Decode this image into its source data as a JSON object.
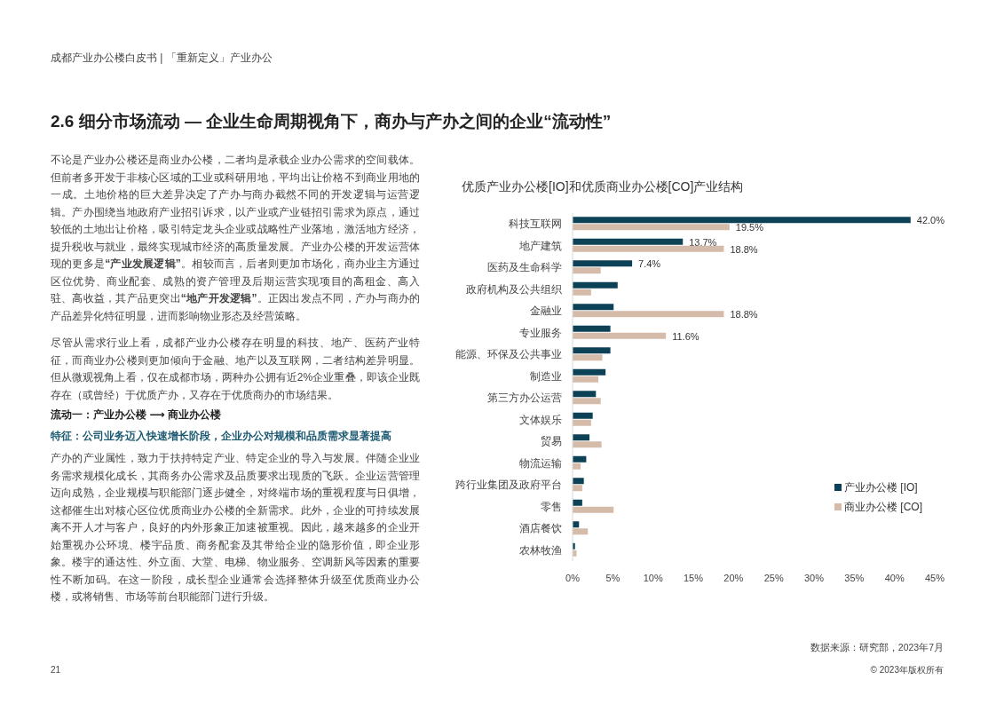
{
  "chart_data": {
    "type": "bar",
    "orientation": "horizontal",
    "title": "优质产业办公楼[IO]和优质商业办公楼[CO]产业结构",
    "categories": [
      "科技互联网",
      "地产建筑",
      "医药及生命科学",
      "政府机构及公共组织",
      "金融业",
      "专业服务",
      "能源、环保及公共事业",
      "制造业",
      "第三方办公运营",
      "文体娱乐",
      "贸易",
      "物流运输",
      "跨行业集团及政府平台",
      "零售",
      "酒店餐饮",
      "农林牧渔"
    ],
    "series": [
      {
        "name": "产业办公楼 [IO]",
        "color": "#0d4256",
        "values": [
          42.0,
          13.7,
          7.4,
          5.6,
          5.1,
          4.7,
          4.7,
          4.1,
          2.9,
          2.5,
          2.1,
          1.7,
          1.4,
          1.2,
          0.8,
          0.3
        ],
        "value_labels": [
          "42.0%",
          "13.7%",
          "7.4%",
          null,
          null,
          null,
          null,
          null,
          null,
          null,
          null,
          null,
          null,
          null,
          null,
          null
        ]
      },
      {
        "name": "商业办公楼 [CO]",
        "color": "#d5bcaa",
        "values": [
          19.5,
          18.8,
          3.5,
          2.3,
          18.8,
          11.6,
          3.7,
          3.2,
          3.5,
          2.3,
          3.6,
          1.0,
          1.2,
          5.1,
          1.9,
          0.5
        ],
        "value_labels": [
          "19.5%",
          "18.8%",
          null,
          null,
          "18.8%",
          "11.6%",
          null,
          null,
          null,
          null,
          null,
          null,
          null,
          null,
          null,
          null
        ]
      }
    ],
    "xlim": [
      0,
      45
    ],
    "xticks": [
      {
        "value": 0,
        "label": "0%"
      },
      {
        "value": 5,
        "label": "5%"
      },
      {
        "value": 10,
        "label": "10%"
      },
      {
        "value": 15,
        "label": "15%"
      },
      {
        "value": 20,
        "label": "20%"
      },
      {
        "value": 25,
        "label": "25%"
      },
      {
        "value": 30,
        "label": "30%"
      },
      {
        "value": 35,
        "label": "35%"
      },
      {
        "value": 40,
        "label": "40%"
      },
      {
        "value": 45,
        "label": "45%"
      }
    ],
    "legend": "bottom right",
    "annotations": [
      "成都产业办公楼白皮书 | 「重新定义」产业办公",
      "2.6 细分市场流动 — 企业生命周期视角下，商办与产办之间的企业“流动性”",
      "不论是产业办公楼还是商业办公楼，二者均是承载企业办公需求的空间载体。但前者多开发于非核心区域的工业或科研用地，平均出让价格不到商业用地的一成。土地价格的巨大差异决定了产办与商办截然不同的开发逻辑与运营逻辑。产办围绕当地政府产业招引诉求，以产业或产业链招引需求为原点，通过较低的土地出让价格，吸引特定龙头企业或战略性产业落地，激活地方经济，提升税收与就业，最终实现城市经济的高质量发展。产业办公楼的开发运营体现的更多是**“产业发展逻辑”**。相较而言，后者则更加市场化，商办业主方通过区位优势、商业配套、成熟的资产管理及后期运营实现项目的高租金、高入驻、高收益，其产品更突出**“地产开发逻辑”**。正因出发点不同，产办与商办的产品差异化特征明显，进而影响物业形态及经营策略。",
      "尽管从需求行业上看，成都产业办公楼存在明显的科技、地产、医药产业特征，而商业办公楼则更加倾向于金融、地产以及互联网，二者结构差异明显。但从微观视角上看，仅在成都市场，两种办公拥有近2%企业重叠，即该企业既存在（或曾经）于优质产办，又存在于优质商办的市场结果。",
      "流动一：产业办公楼 ⟶ 商业办公楼",
      "特征：公司业务迈入快速增长阶段，企业办公对规模和品质需求显著提高",
      "产办的产业属性，致力于扶持特定产业、特定企业的导入与发展。伴随企业业务需求规模化成长，其商务办公需求及品质要求出现质的飞跃。企业运营管理迈向成熟，企业规模与职能部门逐步健全，对终端市场的重视程度与日俱增，这都催生出对核心区位优质商业办公楼的全新需求。此外，企业的可持续发展离不开人才与客户，良好的内外形象正加速被重视。因此，越来越多的企业开始重视办公环境、楼宇品质、商务配套及其带给企业的隐形价值，即企业形象。楼宇的通达性、外立面、大堂、电梯、物业服务、空调新风等因素的重要性不断加码。在这一阶段，成长型企业通常会选择整体升级至优质商业办公楼，或将销售、市场等前台职能部门进行升级。",
      "数据来源：研究部，2023年7月",
      "21",
      "© 2023年版权所有"
    ]
  }
}
